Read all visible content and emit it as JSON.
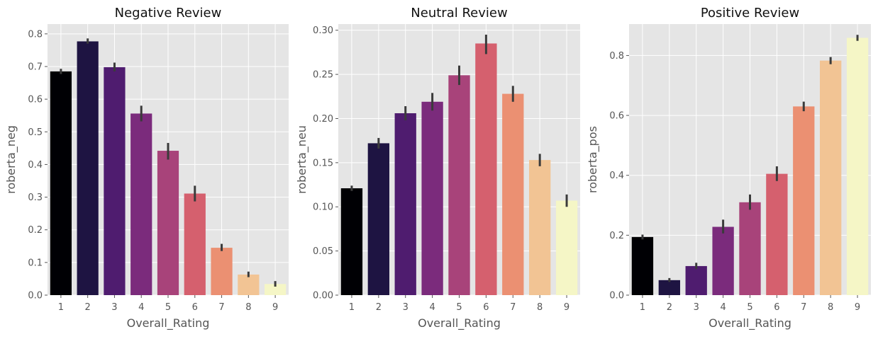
{
  "chart_data": [
    {
      "type": "bar",
      "title": "Negative Review",
      "xlabel": "Overall_Rating",
      "ylabel": "roberta_neg",
      "categories": [
        "1",
        "2",
        "3",
        "4",
        "5",
        "6",
        "7",
        "8",
        "9"
      ],
      "values": [
        0.685,
        0.777,
        0.698,
        0.556,
        0.442,
        0.311,
        0.145,
        0.063,
        0.034
      ],
      "error_low": [
        0.677,
        0.77,
        0.685,
        0.532,
        0.415,
        0.287,
        0.135,
        0.055,
        0.026
      ],
      "error_high": [
        0.693,
        0.786,
        0.712,
        0.58,
        0.466,
        0.335,
        0.157,
        0.072,
        0.043
      ],
      "ylim": [
        0,
        0.83
      ],
      "yticks": [
        0.0,
        0.1,
        0.2,
        0.3,
        0.4,
        0.5,
        0.6,
        0.7,
        0.8
      ],
      "ytick_labels": [
        "0.0",
        "0.1",
        "0.2",
        "0.3",
        "0.4",
        "0.5",
        "0.6",
        "0.7",
        "0.8"
      ],
      "grid": true
    },
    {
      "type": "bar",
      "title": "Neutral Review",
      "xlabel": "Overall_Rating",
      "ylabel": "roberta_neu",
      "categories": [
        "1",
        "2",
        "3",
        "4",
        "5",
        "6",
        "7",
        "8",
        "9"
      ],
      "values": [
        0.121,
        0.172,
        0.206,
        0.219,
        0.249,
        0.285,
        0.228,
        0.153,
        0.107
      ],
      "error_low": [
        0.118,
        0.166,
        0.198,
        0.209,
        0.238,
        0.273,
        0.219,
        0.146,
        0.1
      ],
      "error_high": [
        0.124,
        0.178,
        0.214,
        0.229,
        0.26,
        0.295,
        0.237,
        0.16,
        0.114
      ],
      "ylim": [
        0,
        0.307
      ],
      "yticks": [
        0.0,
        0.05,
        0.1,
        0.15,
        0.2,
        0.25,
        0.3
      ],
      "ytick_labels": [
        "0.00",
        "0.05",
        "0.10",
        "0.15",
        "0.20",
        "0.25",
        "0.30"
      ],
      "grid": true
    },
    {
      "type": "bar",
      "title": "Positive Review",
      "xlabel": "Overall_Rating",
      "ylabel": "roberta_pos",
      "categories": [
        "1",
        "2",
        "3",
        "4",
        "5",
        "6",
        "7",
        "8",
        "9"
      ],
      "values": [
        0.194,
        0.05,
        0.097,
        0.228,
        0.31,
        0.405,
        0.63,
        0.783,
        0.859
      ],
      "error_low": [
        0.186,
        0.044,
        0.087,
        0.206,
        0.285,
        0.381,
        0.614,
        0.771,
        0.849
      ],
      "error_high": [
        0.202,
        0.057,
        0.108,
        0.252,
        0.336,
        0.43,
        0.646,
        0.795,
        0.869
      ],
      "ylim": [
        0,
        0.905
      ],
      "yticks": [
        0.0,
        0.2,
        0.4,
        0.6,
        0.8
      ],
      "ytick_labels": [
        "0.0",
        "0.2",
        "0.4",
        "0.6",
        "0.8"
      ],
      "grid": true
    }
  ],
  "palette": [
    "#000004",
    "#221150",
    "#5f187f",
    "#982d80",
    "#d3436e",
    "#f8765c",
    "#febb81",
    "#fcfdbf"
  ],
  "bar_colors": [
    "#000004",
    "#1e1442",
    "#4f1c6f",
    "#7b2b7c",
    "#a8437a",
    "#d5606e",
    "#eb9072",
    "#f2c494",
    "#f5f6c6"
  ],
  "error_bar_color": "#3b3b3b"
}
